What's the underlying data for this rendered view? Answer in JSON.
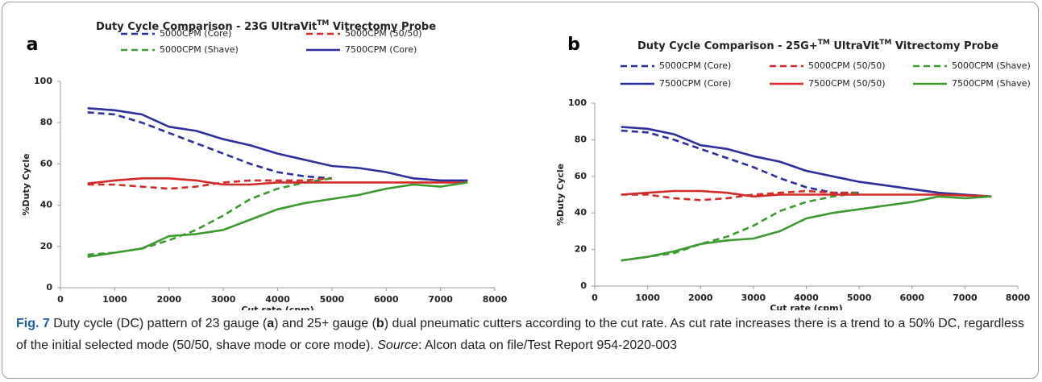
{
  "chart_data": [
    {
      "type": "line",
      "panel": "a",
      "title": "Duty Cycle Comparison - 23G UltraVit",
      "title_sup": "TM",
      "title_end": "  Vitrectomy Probe",
      "x_label": "Cut rate (cpm)",
      "y_label": "%Duty Cycle",
      "x": [
        500,
        1000,
        1500,
        2000,
        2500,
        3000,
        3500,
        4000,
        4500,
        5000,
        5500,
        6000,
        6500,
        7000,
        7500
      ],
      "xlim": [
        0,
        8000
      ],
      "xticks": [
        0,
        1000,
        2000,
        3000,
        4000,
        5000,
        6000,
        7000,
        8000
      ],
      "ylim": [
        0,
        100
      ],
      "yticks": [
        0,
        20,
        40,
        60,
        80,
        100
      ],
      "grid": false,
      "series": [
        {
          "name": "5000CPM (Core)",
          "color": "#2a2f9c",
          "dash": true,
          "values": [
            85,
            84,
            80,
            75,
            70,
            65,
            60,
            56,
            54,
            53,
            null,
            null,
            null,
            null,
            null
          ]
        },
        {
          "name": "5000CPM (50/50)",
          "color": "#d42a28",
          "dash": true,
          "values": [
            50,
            50,
            49,
            48,
            49,
            51,
            52,
            52,
            52,
            53,
            null,
            null,
            null,
            null,
            null
          ]
        },
        {
          "name": "5000CPM (Shave)",
          "color": "#3a9a2e",
          "dash": true,
          "values": [
            16,
            17,
            19,
            23,
            28,
            35,
            43,
            48,
            51,
            53,
            null,
            null,
            null,
            null,
            null
          ]
        },
        {
          "name": "7500CPM (Core)",
          "color": "#2a2f9c",
          "dash": false,
          "values": [
            87,
            86,
            84,
            78,
            76,
            72,
            69,
            65,
            62,
            59,
            58,
            56,
            53,
            52,
            52
          ]
        },
        {
          "color": "#d42a28",
          "dash": false,
          "values": [
            50.5,
            52,
            53,
            53,
            52,
            50,
            50,
            51,
            51,
            51,
            51,
            51,
            51,
            51,
            51
          ]
        },
        {
          "color": "#3a9a2e",
          "dash": false,
          "values": [
            15,
            17,
            19,
            25,
            26,
            28,
            33,
            38,
            41,
            43,
            45,
            48,
            50,
            49,
            51
          ]
        }
      ]
    },
    {
      "type": "line",
      "panel": "b",
      "title": "Duty Cycle Comparison - 25G+",
      "title_sup": "TM",
      "title_end": " UltraVit",
      "title_sup2": "TM",
      "title_end2": " Vitrectomy Probe",
      "x_label": "Cut rate (cpm)",
      "y_label": "%Duty Cycle",
      "x": [
        500,
        1000,
        1500,
        2000,
        2500,
        3000,
        3500,
        4000,
        4500,
        5000,
        5500,
        6000,
        6500,
        7000,
        7500
      ],
      "xlim": [
        0,
        8000
      ],
      "xticks": [
        0,
        1000,
        2000,
        3000,
        4000,
        5000,
        6000,
        7000,
        8000
      ],
      "ylim": [
        0,
        100
      ],
      "yticks": [
        0,
        20,
        40,
        60,
        80,
        100
      ],
      "grid": false,
      "series": [
        {
          "name": "5000CPM (Core)",
          "color": "#2a2f9c",
          "dash": true,
          "values": [
            85,
            84,
            80,
            75,
            70,
            65,
            59,
            54,
            51,
            51,
            null,
            null,
            null,
            null,
            null
          ]
        },
        {
          "name": "5000CPM (50/50)",
          "color": "#d42a28",
          "dash": true,
          "values": [
            50,
            50,
            48,
            47,
            48,
            50,
            51,
            52,
            51,
            51,
            null,
            null,
            null,
            null,
            null
          ]
        },
        {
          "name": "5000CPM (Shave)",
          "color": "#3a9a2e",
          "dash": true,
          "values": [
            14,
            16,
            18,
            23,
            27,
            33,
            41,
            46,
            49,
            51,
            null,
            null,
            null,
            null,
            null
          ]
        },
        {
          "name": "7500CPM (Core)",
          "color": "#2a2f9c",
          "dash": false,
          "values": [
            87,
            86,
            83,
            77,
            75,
            71,
            68,
            63,
            60,
            57,
            55,
            53,
            51,
            50,
            49
          ]
        },
        {
          "name": "7500CPM (50/50)",
          "color": "#d42a28",
          "dash": false,
          "values": [
            50,
            51,
            52,
            52,
            51,
            49,
            50,
            50,
            50,
            50,
            50,
            50,
            50,
            49.5,
            49
          ]
        },
        {
          "name": "7500CPM (Shave)",
          "color": "#3a9a2e",
          "dash": false,
          "values": [
            14,
            16,
            19,
            23,
            25,
            26,
            30,
            37,
            40,
            42,
            44,
            46,
            49,
            48,
            49
          ]
        }
      ]
    }
  ],
  "caption": [
    {
      "text": "Fig. 7",
      "style": "bold"
    },
    {
      "text": "  Duty cycle (DC) pattern of 23 gauge (",
      "style": "normal"
    },
    {
      "text": "a",
      "style": "boldb"
    },
    {
      "text": ") and 25+ gauge (",
      "style": "normal"
    },
    {
      "text": "b",
      "style": "boldb"
    },
    {
      "text": ") dual pneumatic cutters according to the cut rate. As cut rate increases there is a trend to a 50% DC, regardless of the initial selected mode (50/50, shave mode or core mode). ",
      "style": "normal"
    },
    {
      "text": "Source",
      "style": "italic"
    },
    {
      "text": ": Alcon data on file/Test Report 954-2020-003",
      "style": "normal"
    }
  ]
}
